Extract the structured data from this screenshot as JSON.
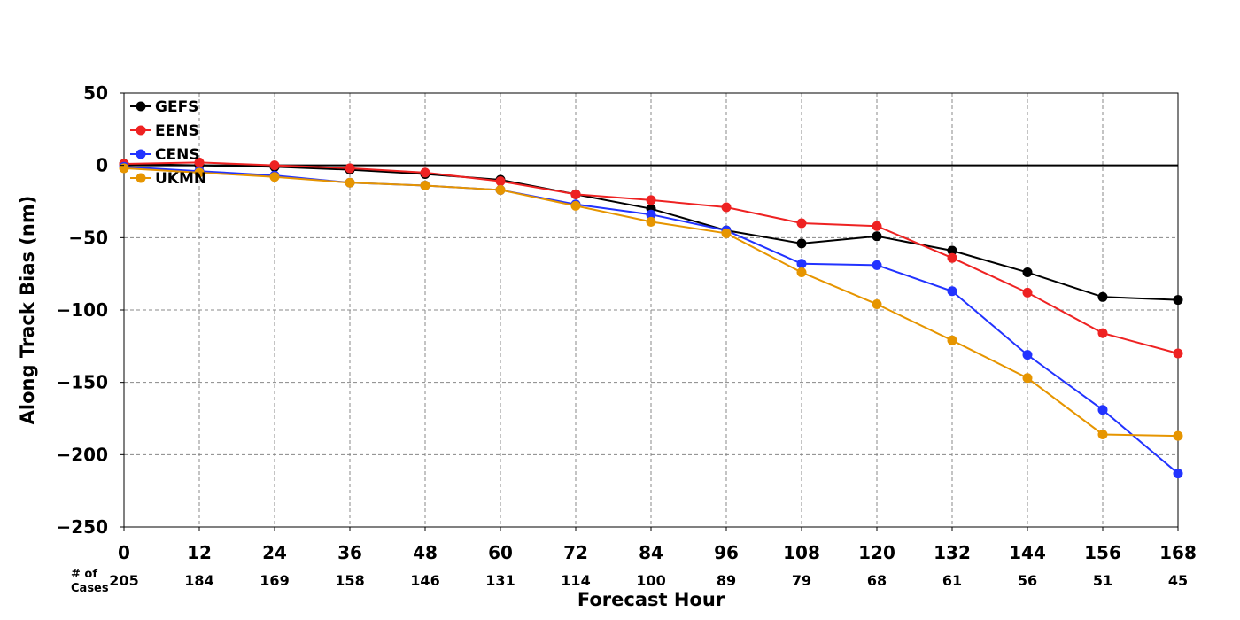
{
  "chart_data": {
    "type": "line",
    "title": "",
    "xlabel": "Forecast Hour",
    "ylabel": "Along Track Bias (nm)",
    "x": [
      0,
      12,
      24,
      36,
      48,
      60,
      72,
      84,
      96,
      108,
      120,
      132,
      144,
      156,
      168
    ],
    "xlim": [
      0,
      168
    ],
    "ylim": [
      -250,
      50
    ],
    "x_ticks": [
      "0",
      "12",
      "24",
      "36",
      "48",
      "60",
      "72",
      "84",
      "96",
      "108",
      "120",
      "132",
      "144",
      "156",
      "168"
    ],
    "y_ticks": [
      50,
      0,
      -50,
      -100,
      -150,
      -200,
      -250
    ],
    "y_tick_labels": [
      "50",
      "0",
      "−50",
      "−100",
      "−150",
      "−200",
      "−250"
    ],
    "grid": true,
    "zero_line": true,
    "legend_position": "top-left",
    "cases_label": [
      "# of",
      "Cases"
    ],
    "cases": [
      "205",
      "184",
      "169",
      "158",
      "146",
      "131",
      "114",
      "100",
      "89",
      "79",
      "68",
      "61",
      "56",
      "51",
      "45"
    ],
    "series": [
      {
        "name": "GEFS",
        "color": "#000000",
        "values": [
          1,
          0,
          -1,
          -3,
          -6,
          -10,
          -20,
          -30,
          -45,
          -54,
          -49,
          -59,
          -74,
          -91,
          -93
        ]
      },
      {
        "name": "EENS",
        "color": "#ee2222",
        "values": [
          1,
          2,
          0,
          -2,
          -5,
          -11,
          -20,
          -24,
          -29,
          -40,
          -42,
          -64,
          -88,
          -116,
          -130
        ]
      },
      {
        "name": "CENS",
        "color": "#2233ff",
        "values": [
          -1,
          -4,
          -7,
          -12,
          -14,
          -17,
          -27,
          -34,
          -45,
          -68,
          -69,
          -87,
          -131,
          -169,
          -213
        ]
      },
      {
        "name": "UKMN",
        "color": "#e69500",
        "values": [
          -2,
          -5,
          -8,
          -12,
          -14,
          -17,
          -28,
          -39,
          -47,
          -74,
          -96,
          -121,
          -147,
          -186,
          -187
        ]
      }
    ]
  }
}
